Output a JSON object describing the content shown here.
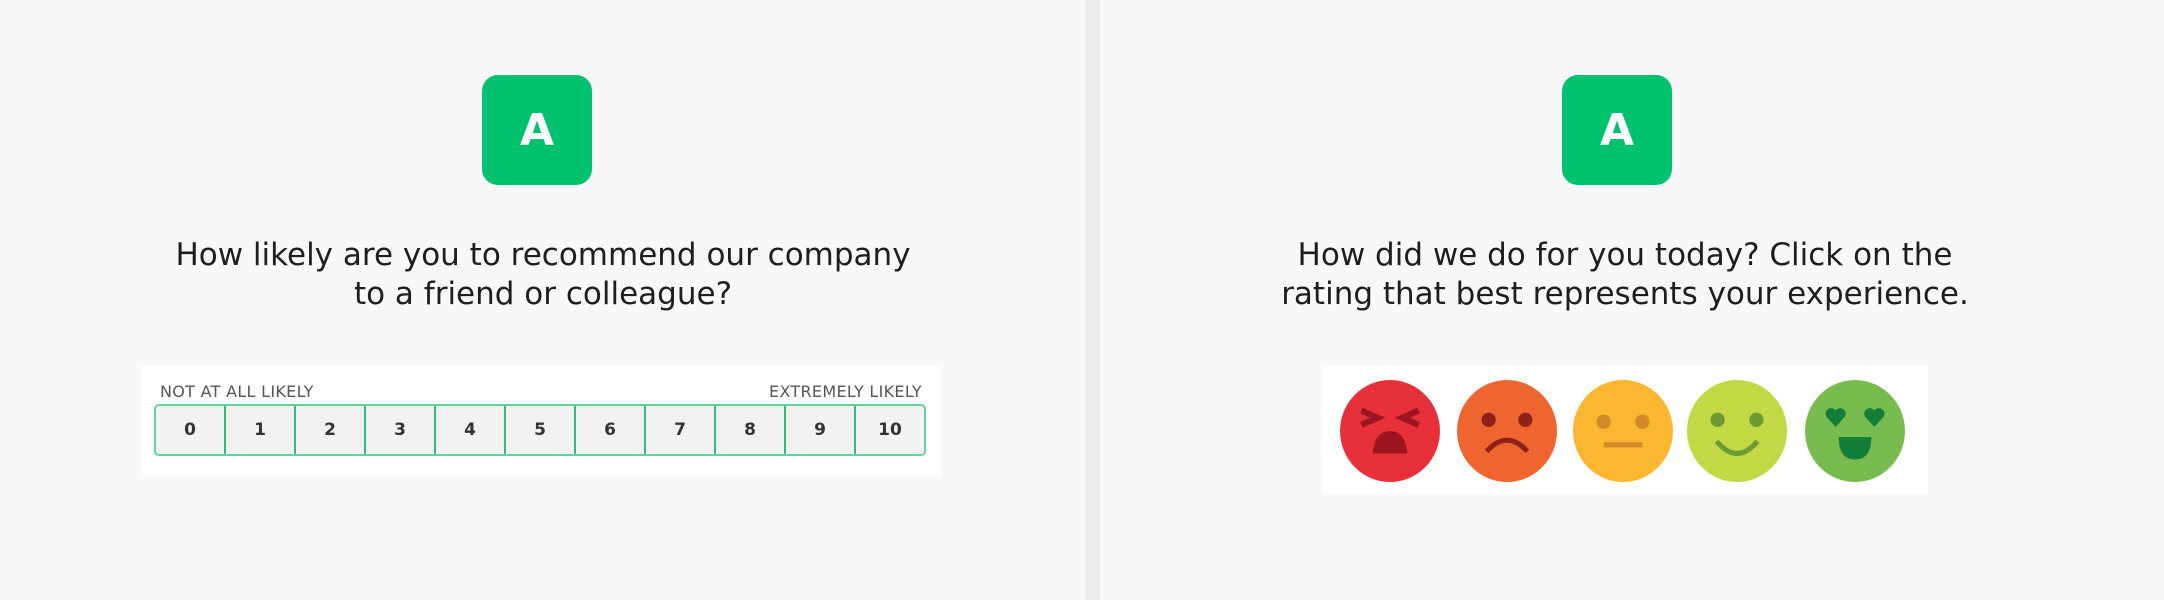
{
  "nps_panel": {
    "logo_letter": "A",
    "question_line1": "How likely are you to recommend our company",
    "question_line2": "to a friend or colleague?",
    "low_label": "NOT AT ALL LIKELY",
    "high_label": "EXTREMELY LIKELY",
    "options": [
      "0",
      "1",
      "2",
      "3",
      "4",
      "5",
      "6",
      "7",
      "8",
      "9",
      "10"
    ],
    "accent_color": "#00c16e"
  },
  "emoji_panel": {
    "logo_letter": "A",
    "question_line1": "How did we do for you today? Click on the",
    "question_line2": "rating that best represents your experience.",
    "faces": [
      {
        "icon": "angry-face-icon",
        "color": "#e8303a"
      },
      {
        "icon": "sad-face-icon",
        "color": "#ee652f"
      },
      {
        "icon": "neutral-face-icon",
        "color": "#fdb62f"
      },
      {
        "icon": "smile-face-icon",
        "color": "#c2d844"
      },
      {
        "icon": "heart-eyes-face-icon",
        "color": "#78bc4f"
      }
    ]
  }
}
